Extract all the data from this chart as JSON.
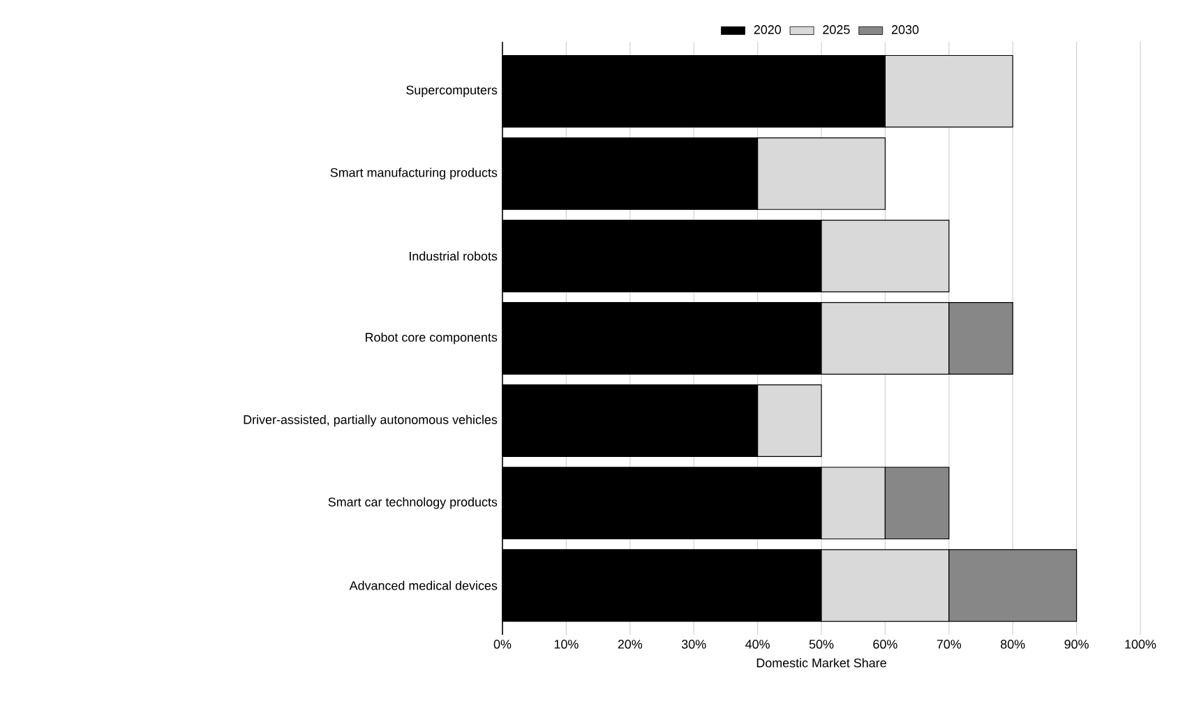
{
  "chart_data": {
    "type": "bar",
    "orientation": "horizontal",
    "stacked": true,
    "xlabel": "Domestic Market Share",
    "categories": [
      "Supercomputers",
      "Smart manufacturing products",
      "Industrial robots",
      "Robot core components",
      "Driver-assisted, partially autonomous vehicles",
      "Smart car technology products",
      "Advanced medical devices"
    ],
    "series": [
      {
        "name": "2020",
        "color": "#000000",
        "values": [
          60,
          40,
          50,
          50,
          40,
          50,
          50
        ]
      },
      {
        "name": "2025",
        "color": "#d9d9d9",
        "values": [
          20,
          20,
          20,
          20,
          10,
          10,
          20
        ]
      },
      {
        "name": "2030",
        "color": "#878787",
        "values": [
          null,
          null,
          null,
          10,
          null,
          10,
          20
        ]
      }
    ],
    "xlim": [
      0,
      100
    ],
    "xticks": [
      {
        "value": 0,
        "label": "0%"
      },
      {
        "value": 10,
        "label": "10%"
      },
      {
        "value": 20,
        "label": "20%"
      },
      {
        "value": 30,
        "label": "30%"
      },
      {
        "value": 40,
        "label": "40%"
      },
      {
        "value": 50,
        "label": "50%"
      },
      {
        "value": 60,
        "label": "60%"
      },
      {
        "value": 70,
        "label": "70%"
      },
      {
        "value": 80,
        "label": "80%"
      },
      {
        "value": 90,
        "label": "90%"
      },
      {
        "value": 100,
        "label": "100%"
      }
    ],
    "grid": "x",
    "legend": "top"
  }
}
